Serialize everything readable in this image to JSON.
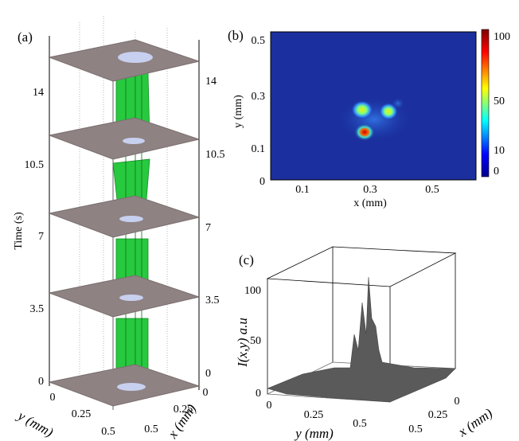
{
  "panels": [
    {
      "label": "(a)",
      "z_axis_label": "Time (s)",
      "z_ticks": [
        "0",
        "3.5",
        "7",
        "10.5",
        "14"
      ],
      "y_axis_label": "y (mm)",
      "y_ticks": [
        "0",
        "0.25",
        "0.5"
      ],
      "x_axis_label": "x (mm)",
      "x_ticks": [
        "0",
        "0.25",
        "0.5"
      ]
    },
    {
      "label": "(b)",
      "x_axis_label": "x (mm)",
      "x_ticks": [
        "0.1",
        "0.3",
        "0.5"
      ],
      "y_axis_label": "y (mm)",
      "y_ticks": [
        "0",
        "0.1",
        "0.3",
        "0.5"
      ],
      "colorbar_ticks": [
        "0",
        "10",
        "50",
        "100"
      ]
    },
    {
      "label": "(c)",
      "z_axis_label": "I(x,y) a.u",
      "z_ticks": [
        "0",
        "50",
        "100"
      ],
      "y_axis_label": "y (mm)",
      "y_ticks": [
        "0",
        "0.25",
        "0.5"
      ],
      "x_axis_label": "x (mm)",
      "x_ticks": [
        "0",
        "0.25",
        "0.5"
      ]
    }
  ]
}
